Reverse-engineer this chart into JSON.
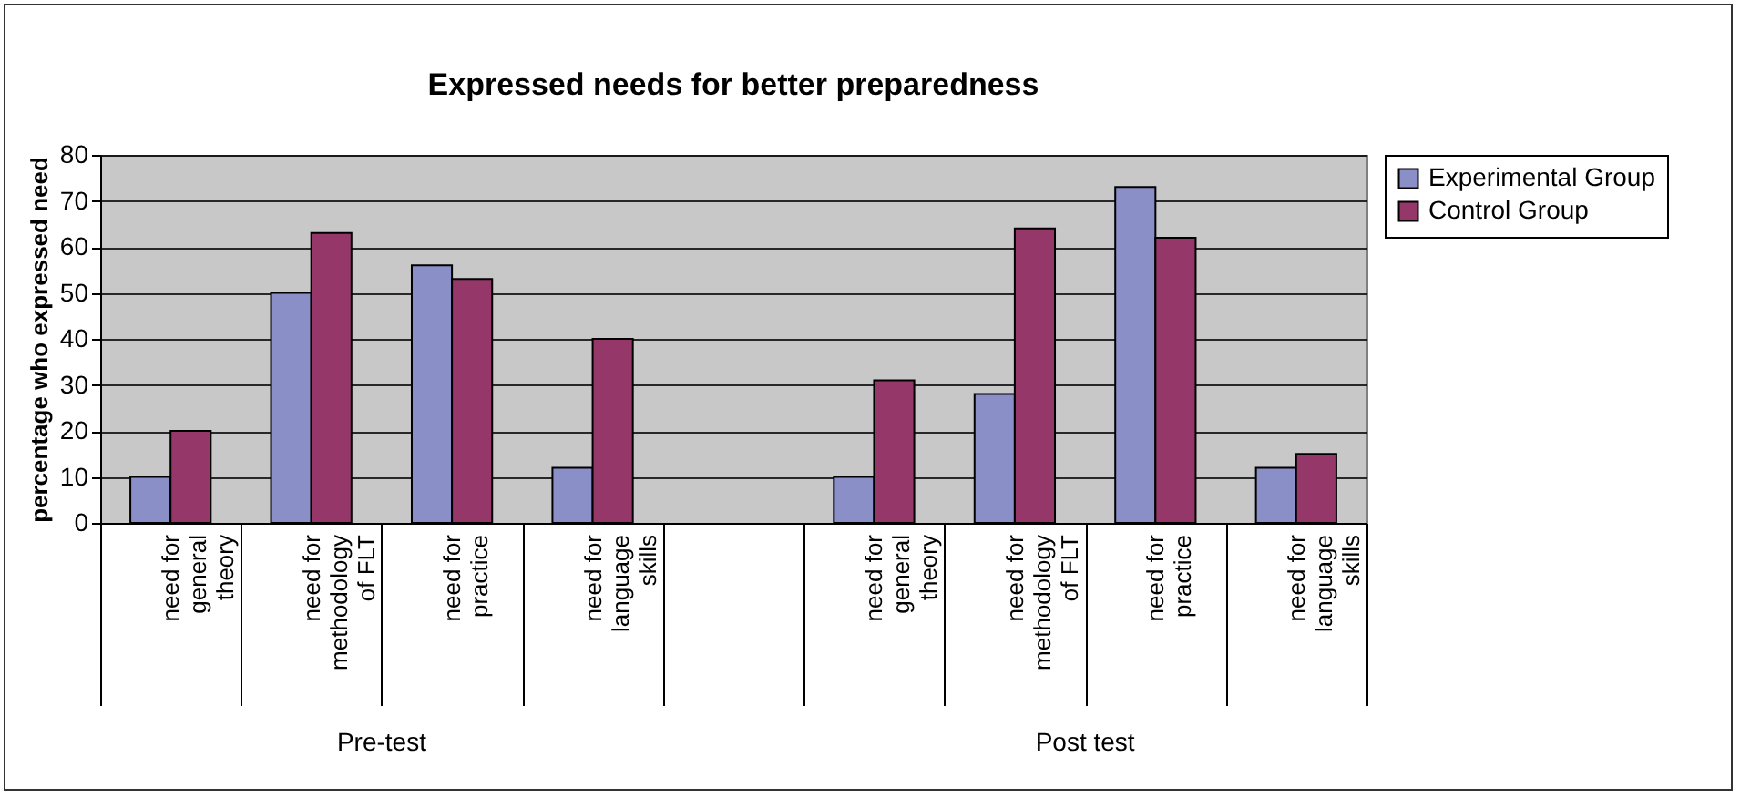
{
  "chart_data": {
    "type": "bar",
    "title": "Expressed needs for better preparedness",
    "ylabel": "percentage who expressed need",
    "categories": [
      "need for general theory",
      "need for methodology of FLT",
      "need for practice",
      "need for language skills",
      null,
      "need for general theory",
      "need for methodology of FLT",
      "need for practice",
      "need for language skills"
    ],
    "series": [
      {
        "name": "Experimental Group",
        "color": "#8b8fc8",
        "values": [
          10,
          50,
          56,
          12,
          null,
          10,
          28,
          73,
          12
        ]
      },
      {
        "name": "Control Group",
        "color": "#963769",
        "values": [
          20,
          63,
          53,
          40,
          null,
          31,
          64,
          62,
          15
        ]
      }
    ],
    "ylim": [
      0,
      80
    ],
    "yticks": [
      0,
      10,
      20,
      30,
      40,
      50,
      60,
      70,
      80
    ],
    "grid": "y",
    "legend": "right",
    "annotations": [
      "Pre-test",
      "Post test"
    ]
  }
}
